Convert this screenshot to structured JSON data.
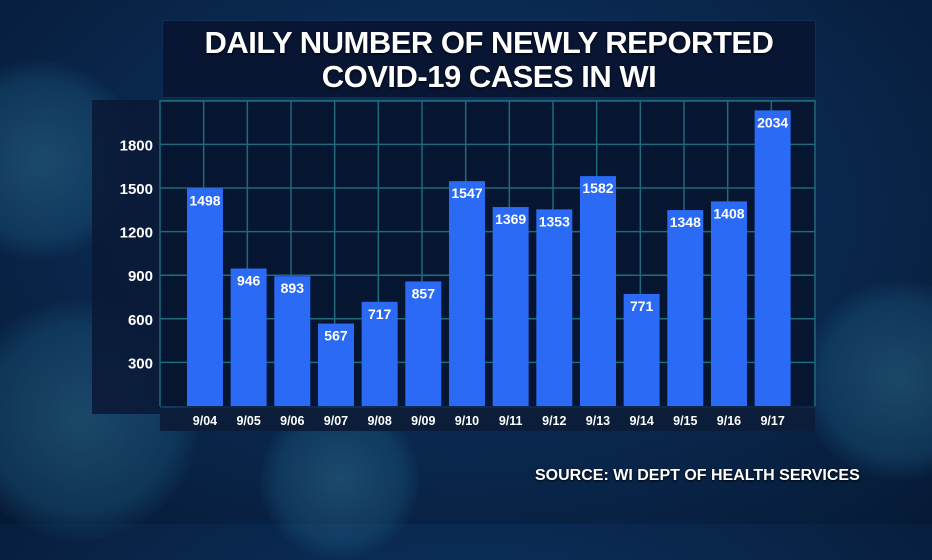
{
  "chart_data": {
    "type": "bar",
    "title": [
      "DAILY NUMBER OF NEWLY REPORTED",
      "COVID-19 CASES IN WI"
    ],
    "source": "SOURCE: WI DEPT OF HEALTH SERVICES",
    "xlabel": "",
    "ylabel": "",
    "categories": [
      "9/04",
      "9/05",
      "9/06",
      "9/07",
      "9/08",
      "9/09",
      "9/10",
      "9/11",
      "9/12",
      "9/13",
      "9/14",
      "9/15",
      "9/16",
      "9/17"
    ],
    "values": [
      1498,
      946,
      893,
      567,
      717,
      857,
      1547,
      1369,
      1353,
      1582,
      771,
      1348,
      1408,
      2034
    ],
    "data_labels": [
      "1498",
      "946",
      "893",
      "567",
      "717",
      "857",
      "1547",
      "1369",
      "1353",
      "1582",
      "771",
      "1348",
      "1408",
      "2034"
    ],
    "yticks": [
      300,
      600,
      900,
      1200,
      1500,
      1800
    ],
    "ytick_labels": [
      "300",
      "600",
      "900",
      "1200",
      "1500",
      "1800"
    ],
    "ylim": [
      0,
      2100
    ],
    "grid": true,
    "legend": "none",
    "colors": {
      "bar": "#2a6af5",
      "grid": "#1f6a7c",
      "plot_bg": "#061530",
      "axis_band": "#0b1d38"
    }
  }
}
